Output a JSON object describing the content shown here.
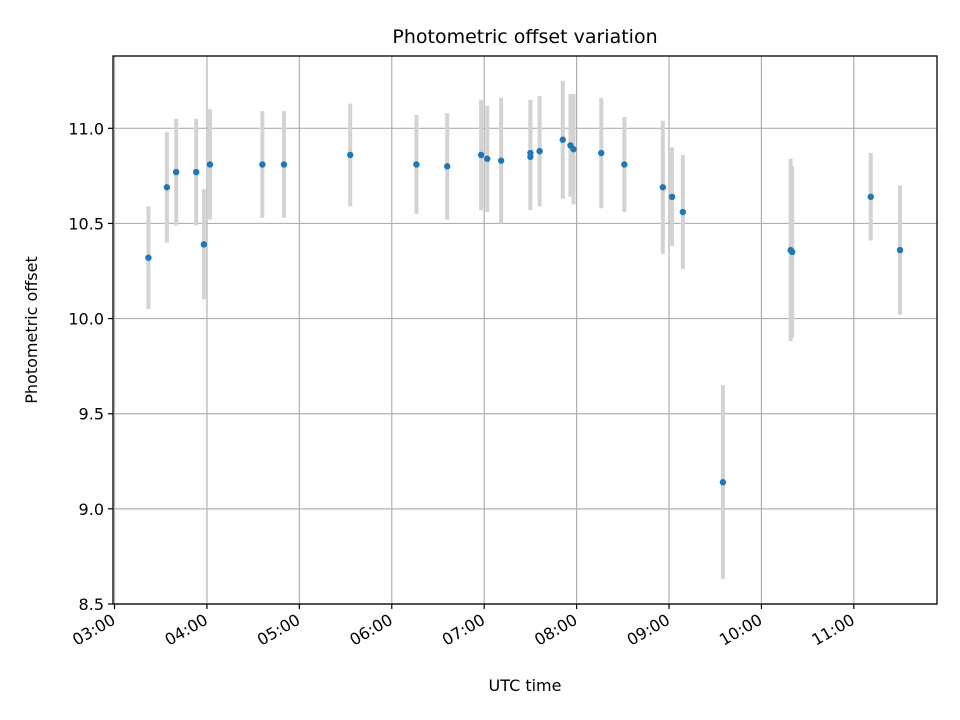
{
  "chart_data": {
    "type": "scatter",
    "title": "Photometric offset variation",
    "xlabel": "UTC time",
    "ylabel": "Photometric offset",
    "x_unit": "time (HH:MM)",
    "xlim": [
      "02:59",
      "11:54"
    ],
    "ylim": [
      8.5,
      11.38
    ],
    "grid": true,
    "x_ticks": [
      "03:00",
      "04:00",
      "05:00",
      "06:00",
      "07:00",
      "08:00",
      "09:00",
      "10:00",
      "11:00"
    ],
    "y_ticks": [
      "8.5",
      "9.0",
      "9.5",
      "10.0",
      "10.5",
      "11.0"
    ],
    "point_color": "#1f77b4",
    "errorbar_color": "#d3d3d3",
    "series": [
      {
        "points": [
          {
            "x": "03:22",
            "y": 10.32,
            "err": 0.27
          },
          {
            "x": "03:34",
            "y": 10.69,
            "err": 0.29
          },
          {
            "x": "03:40",
            "y": 10.77,
            "err": 0.28
          },
          {
            "x": "03:53",
            "y": 10.77,
            "err": 0.28
          },
          {
            "x": "03:58",
            "y": 10.39,
            "err": 0.29
          },
          {
            "x": "04:02",
            "y": 10.81,
            "err": 0.29
          },
          {
            "x": "04:36",
            "y": 10.81,
            "err": 0.28
          },
          {
            "x": "04:50",
            "y": 10.81,
            "err": 0.28
          },
          {
            "x": "05:33",
            "y": 10.86,
            "err": 0.27
          },
          {
            "x": "06:16",
            "y": 10.81,
            "err": 0.26
          },
          {
            "x": "06:36",
            "y": 10.8,
            "err": 0.28
          },
          {
            "x": "06:58",
            "y": 10.86,
            "err": 0.29
          },
          {
            "x": "07:02",
            "y": 10.84,
            "err": 0.28
          },
          {
            "x": "07:11",
            "y": 10.83,
            "err": 0.33
          },
          {
            "x": "07:30",
            "y": 10.85,
            "err": 0.28
          },
          {
            "x": "07:30",
            "y": 10.87,
            "err": 0.28
          },
          {
            "x": "07:36",
            "y": 10.88,
            "err": 0.29
          },
          {
            "x": "07:51",
            "y": 10.94,
            "err": 0.31
          },
          {
            "x": "07:56",
            "y": 10.91,
            "err": 0.27
          },
          {
            "x": "07:58",
            "y": 10.89,
            "err": 0.29
          },
          {
            "x": "08:16",
            "y": 10.87,
            "err": 0.29
          },
          {
            "x": "08:31",
            "y": 10.81,
            "err": 0.25
          },
          {
            "x": "08:56",
            "y": 10.69,
            "err": 0.35
          },
          {
            "x": "09:02",
            "y": 10.64,
            "err": 0.26
          },
          {
            "x": "09:09",
            "y": 10.56,
            "err": 0.3
          },
          {
            "x": "09:35",
            "y": 9.14,
            "err": 0.51
          },
          {
            "x": "10:19",
            "y": 10.36,
            "err": 0.48
          },
          {
            "x": "10:20",
            "y": 10.35,
            "err": 0.45
          },
          {
            "x": "11:11",
            "y": 10.64,
            "err": 0.23
          },
          {
            "x": "11:30",
            "y": 10.36,
            "err": 0.34
          }
        ]
      }
    ]
  }
}
